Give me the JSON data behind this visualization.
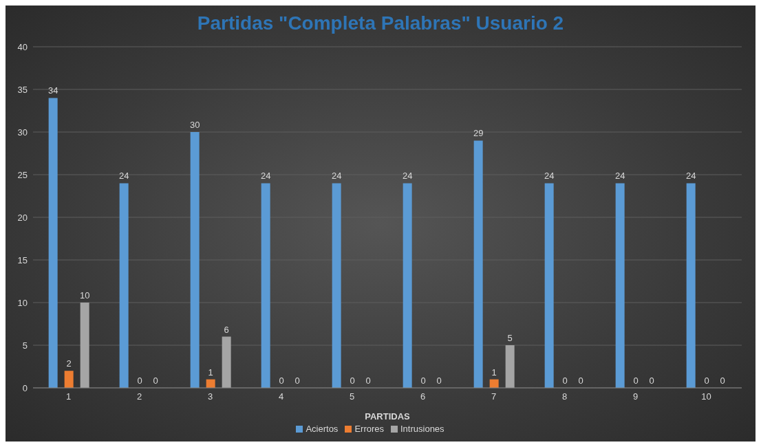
{
  "chart_data": {
    "type": "bar",
    "title": "Partidas \"Completa Palabras\" Usuario 2",
    "xlabel": "PARTIDAS",
    "categories": [
      "1",
      "2",
      "3",
      "4",
      "5",
      "6",
      "7",
      "8",
      "9",
      "10"
    ],
    "series": [
      {
        "name": "Aciertos",
        "color": "#5b9bd5",
        "values": [
          34,
          24,
          30,
          24,
          24,
          24,
          29,
          24,
          24,
          24
        ]
      },
      {
        "name": "Errores",
        "color": "#ed7d31",
        "values": [
          2,
          0,
          1,
          0,
          0,
          0,
          1,
          0,
          0,
          0
        ]
      },
      {
        "name": "Intrusiones",
        "color": "#a5a5a5",
        "values": [
          10,
          0,
          6,
          0,
          0,
          0,
          5,
          0,
          0,
          0
        ]
      }
    ],
    "ylim": [
      0,
      40
    ],
    "yticks": [
      0,
      5,
      10,
      15,
      20,
      25,
      30,
      35,
      40
    ],
    "grid": "y",
    "legend": "bottom",
    "data_labels": true
  }
}
